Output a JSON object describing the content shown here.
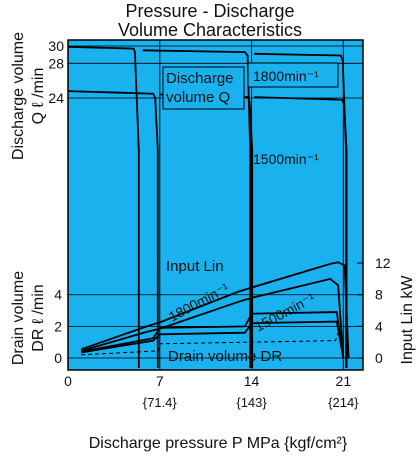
{
  "chart_data": {
    "type": "line",
    "title_lines": [
      "Pressure - Discharge",
      "Volume Characteristics"
    ],
    "xlabel": "Discharge pressure P MPa {kgf/cm²}",
    "x_ticks": [
      {
        "value": 0,
        "label": "0",
        "sub": ""
      },
      {
        "value": 7,
        "label": "7",
        "sub": "{71.4}"
      },
      {
        "value": 14,
        "label": "14",
        "sub": "{143}"
      },
      {
        "value": 21,
        "label": "21",
        "sub": "{214}"
      }
    ],
    "xlim": [
      0,
      22.5
    ],
    "upper_axis": {
      "ylabel_lines": [
        "Discharge volume",
        "Q ℓ /min"
      ],
      "ticks": [
        24,
        28,
        30
      ],
      "ylim": [
        18,
        30
      ]
    },
    "lower_axis": {
      "ylabel_lines": [
        "Drain volume",
        "DR ℓ /min"
      ],
      "ticks": [
        0,
        2,
        4
      ],
      "ylim": [
        0,
        6.7
      ]
    },
    "right_axis": {
      "ylabel": "Input Lin kW",
      "ticks": [
        0,
        4,
        8,
        12
      ],
      "ylim": [
        0,
        13.4
      ]
    },
    "background_color": "#1ab1ef",
    "annotations": [
      {
        "text_lines": [
          "Discharge",
          "volume Q"
        ],
        "boxed": true
      },
      {
        "text": "1800min⁻¹",
        "boxed": true,
        "rotated": false
      },
      {
        "text": "1500min⁻¹",
        "boxed": false,
        "rotated": false
      },
      {
        "text": "Input Lin",
        "boxed": false,
        "rotated": false
      },
      {
        "text": "1800min⁻¹",
        "boxed": false,
        "rotated": true
      },
      {
        "text": "1500min⁻¹",
        "boxed": false,
        "rotated": true
      },
      {
        "text": "Drain volume DR",
        "boxed": false,
        "rotated": false
      }
    ],
    "series": [
      {
        "name": "Discharge volume Q 1800min⁻¹",
        "axis": "upper",
        "style": "solid",
        "x": [
          0,
          5.1,
          5.4,
          5.7,
          7,
          14,
          20.9,
          21.0
        ],
        "y": [
          29.9,
          29.7,
          29.5,
          18,
          18,
          18,
          29.1,
          18
        ],
        "shape": "shifts",
        "segments": [
          {
            "x": [
              0,
              5.0,
              5.1,
              5.4
            ],
            "y": [
              29.9,
              29.7,
              29.3,
              18
            ]
          },
          {
            "x": [
              5.7,
              13.5,
              13.7,
              13.9
            ],
            "y": [
              29.5,
              29.3,
              28.9,
              18
            ]
          },
          {
            "x": [
              14.2,
              20.8,
              20.95,
              21.2
            ],
            "y": [
              29.1,
              28.9,
              28.4,
              18
            ]
          }
        ]
      },
      {
        "name": "Discharge volume Q 1500min⁻¹",
        "axis": "upper",
        "style": "solid",
        "segments": [
          {
            "x": [
              0,
              6.5,
              6.65,
              6.85
            ],
            "y": [
              24.8,
              24.5,
              24.0,
              18
            ]
          },
          {
            "x": [
              7.0,
              13.7,
              13.85,
              14.05
            ],
            "y": [
              24.4,
              24.1,
              23.6,
              18
            ]
          },
          {
            "x": [
              14.2,
              20.9,
              21.05,
              21.25
            ],
            "y": [
              24.1,
              23.8,
              23.3,
              18
            ]
          }
        ]
      },
      {
        "name": "Input Lin 1800min⁻¹",
        "axis": "right",
        "style": "solid",
        "x": [
          1,
          6,
          7,
          13,
          14,
          20,
          20.6,
          21.1,
          21.4
        ],
        "y": [
          1.1,
          4.0,
          4.5,
          8.4,
          8.9,
          11.9,
          12.1,
          11.7,
          0
        ]
      },
      {
        "name": "Input Lin 1500min⁻¹",
        "axis": "right",
        "style": "solid",
        "x": [
          1,
          6,
          7,
          13,
          14,
          19.5,
          20.0,
          20.6,
          21.0
        ],
        "y": [
          0.9,
          3.3,
          3.7,
          7.1,
          7.6,
          9.8,
          10.0,
          9.2,
          0
        ]
      },
      {
        "name": "Drain volume DR 1800min⁻¹",
        "axis": "lower",
        "style": "solid",
        "x": [
          1,
          6.5,
          7,
          13.5,
          14,
          20.5,
          21
        ],
        "y": [
          0.4,
          1.25,
          1.9,
          2.0,
          2.8,
          2.9,
          0
        ]
      },
      {
        "name": "Drain volume DR 1500min⁻¹",
        "axis": "lower",
        "style": "solid",
        "x": [
          1,
          6.5,
          7,
          13.5,
          14,
          20.5,
          21
        ],
        "y": [
          0.35,
          1.1,
          1.5,
          1.6,
          2.2,
          2.3,
          0
        ]
      },
      {
        "name": "Drain volume DR (dashed)",
        "axis": "lower",
        "style": "dashed",
        "x": [
          1,
          6.9,
          7.0,
          20.4,
          20.7,
          21.0
        ],
        "y": [
          0.2,
          0.45,
          0.9,
          1.1,
          1.8,
          0.2
        ]
      }
    ],
    "grid": true,
    "legend": "none"
  }
}
